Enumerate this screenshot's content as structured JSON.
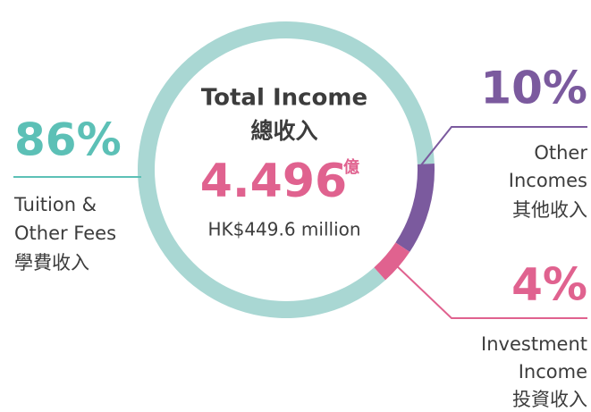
{
  "chart_data": {
    "type": "donut",
    "title": "Total Income",
    "subtitle": "總收入",
    "center_value": "4.496",
    "center_unit": "億",
    "center_note": "HK$449.6 million",
    "categories": [
      [
        "Tuition &",
        "Other Fees",
        "學費收入"
      ],
      [
        "Other",
        "Incomes",
        "其他收入"
      ],
      [
        "Investment",
        "Income",
        "投資收入"
      ]
    ],
    "values": [
      86,
      10,
      4
    ],
    "value_labels": [
      "86%",
      "10%",
      "4%"
    ],
    "colors": [
      "#a9d7d3",
      "#7b5a9e",
      "#e0628f"
    ],
    "label_colors": [
      "#5cc0b6",
      "#7b5a9e",
      "#e0628f"
    ],
    "start_angle": 138
  }
}
